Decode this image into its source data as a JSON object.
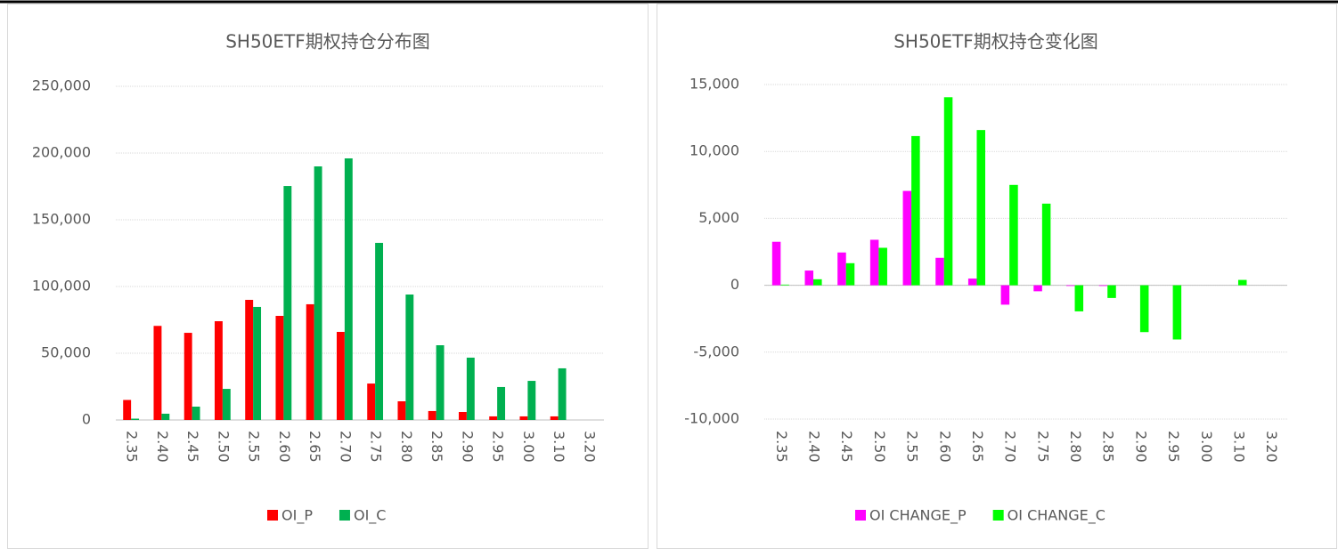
{
  "chart_data": [
    {
      "type": "bar",
      "title": "SH50ETF期权持仓分布图",
      "categories": [
        "2.35",
        "2.40",
        "2.45",
        "2.50",
        "2.55",
        "2.60",
        "2.65",
        "2.70",
        "2.75",
        "2.80",
        "2.85",
        "2.90",
        "2.95",
        "3.00",
        "3.10",
        "3.20"
      ],
      "series": [
        {
          "name": "OI_P",
          "color": "#ff0000",
          "values": [
            15000,
            70500,
            65300,
            74000,
            90000,
            78000,
            86700,
            66000,
            27300,
            14000,
            6700,
            6000,
            2700,
            2700,
            2700,
            0
          ]
        },
        {
          "name": "OI_C",
          "color": "#00b050",
          "values": [
            1000,
            4700,
            10000,
            23300,
            84700,
            175300,
            190000,
            196000,
            132700,
            94000,
            56000,
            46700,
            24700,
            29300,
            38700,
            0
          ]
        }
      ],
      "ylim": [
        0,
        250000
      ],
      "yticks": [
        0,
        {
          "value": 50000,
          "label": "50,000"
        },
        {
          "value": 100000,
          "label": "100,000"
        },
        {
          "value": 150000,
          "label": "150,000"
        },
        {
          "value": 200000,
          "label": "200,000"
        },
        {
          "value": 250000,
          "label": "250,000"
        }
      ],
      "grid": true,
      "legend": "bottom"
    },
    {
      "type": "bar",
      "title": "SH50ETF期权持仓变化图",
      "categories": [
        "2.35",
        "2.40",
        "2.45",
        "2.50",
        "2.55",
        "2.60",
        "2.65",
        "2.70",
        "2.75",
        "2.80",
        "2.85",
        "2.90",
        "2.95",
        "3.00",
        "3.10",
        "3.20"
      ],
      "series": [
        {
          "name": "OI CHANGE_P",
          "color": "#ff00ff",
          "values": [
            3250,
            1100,
            2450,
            3400,
            7050,
            2050,
            500,
            -1450,
            -450,
            -50,
            -50,
            0,
            0,
            0,
            0,
            0
          ]
        },
        {
          "name": "OI CHANGE_C",
          "color": "#00ff00",
          "values": [
            50,
            450,
            1650,
            2800,
            11150,
            14050,
            11600,
            7500,
            6100,
            -1950,
            -950,
            -3500,
            -4050,
            0,
            400,
            0
          ]
        }
      ],
      "ylim": [
        -10000,
        15000
      ],
      "yticks": [
        {
          "value": -10000,
          "label": "-10,000"
        },
        {
          "value": -5000,
          "label": "-5,000"
        },
        0,
        {
          "value": 5000,
          "label": "5,000"
        },
        {
          "value": 10000,
          "label": "10,000"
        },
        {
          "value": 15000,
          "label": "15,000"
        }
      ],
      "grid": true,
      "legend": "bottom"
    }
  ]
}
